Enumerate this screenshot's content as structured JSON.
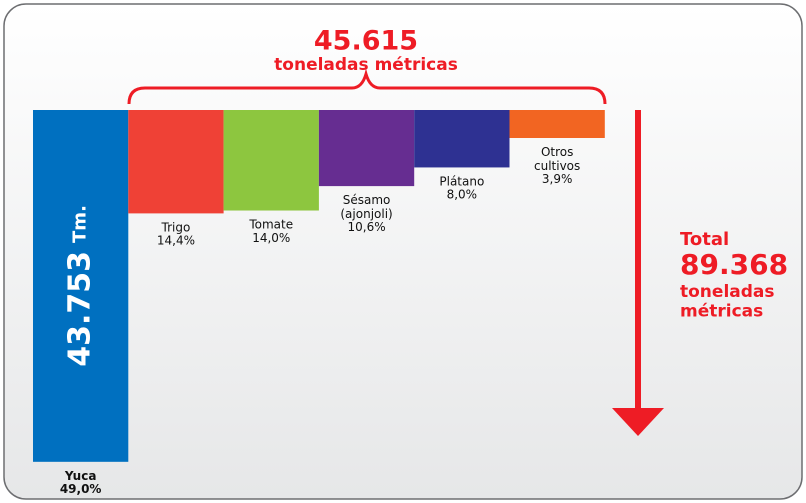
{
  "chart_data": {
    "type": "bar",
    "title": "45.615",
    "subtitle": "toneladas métricas",
    "categories": [
      "Yuca",
      "Trigo",
      "Tomate",
      "Sésamo (ajonjoli)",
      "Plátano",
      "Otros cultivos"
    ],
    "values": [
      49.0,
      14.4,
      14.0,
      10.6,
      8.0,
      3.9
    ],
    "value_labels": [
      "49,0%",
      "14,4%",
      "14,0%",
      "10,6%",
      "8,0%",
      "3,9%"
    ],
    "colors": [
      "#0070c0",
      "#ef4136",
      "#8dc63f",
      "#662d91",
      "#2e3192",
      "#f26522"
    ],
    "bar_annotation": {
      "value": "43.753",
      "unit": "Tm."
    },
    "total": {
      "label": "Total",
      "value": "89.368",
      "unit": "toneladas métricas"
    }
  }
}
